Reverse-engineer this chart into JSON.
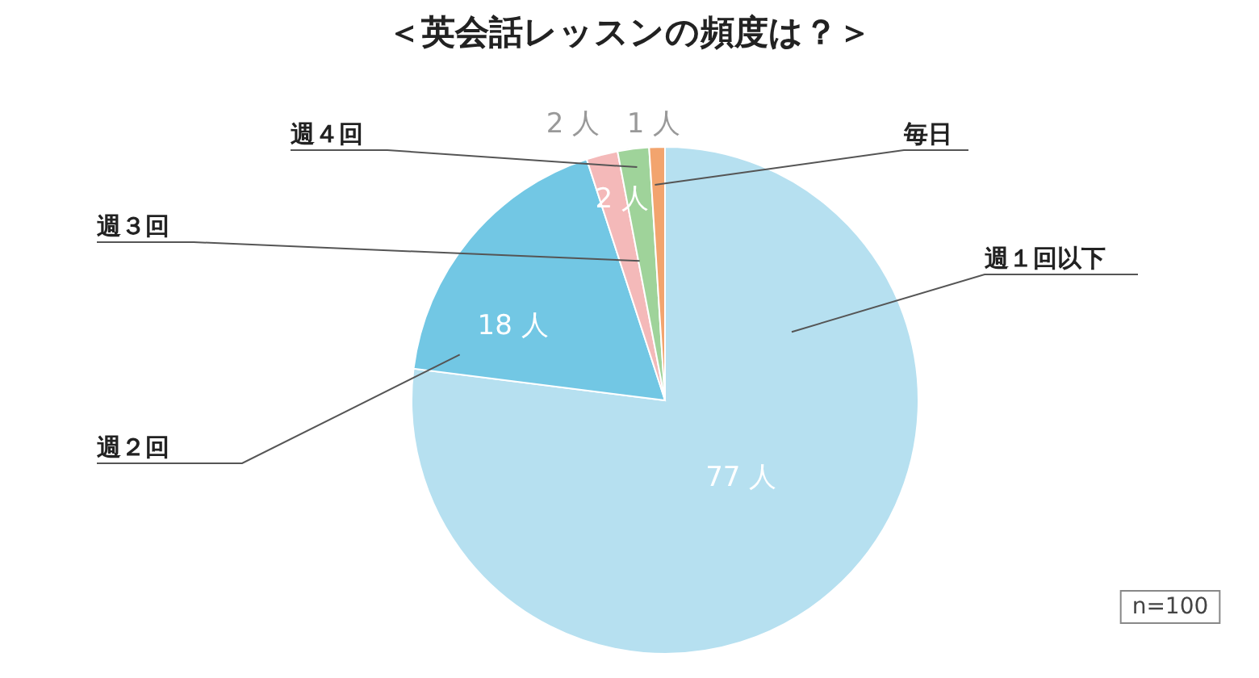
{
  "chart_data": {
    "type": "pie",
    "title": "＜英会話レッスンの頻度は？＞",
    "categories": [
      "週１回以下",
      "週２回",
      "週３回",
      "週４回",
      "毎日"
    ],
    "values": [
      77,
      18,
      2,
      2,
      1
    ],
    "colors": [
      "#b6e0f0",
      "#72c7e4",
      "#f4b9b9",
      "#9fd39a",
      "#f2a46e"
    ],
    "value_labels": [
      "77 人",
      "18 人",
      "2 人",
      "2 人",
      "1 人"
    ],
    "annotations": [
      "n=100"
    ]
  }
}
